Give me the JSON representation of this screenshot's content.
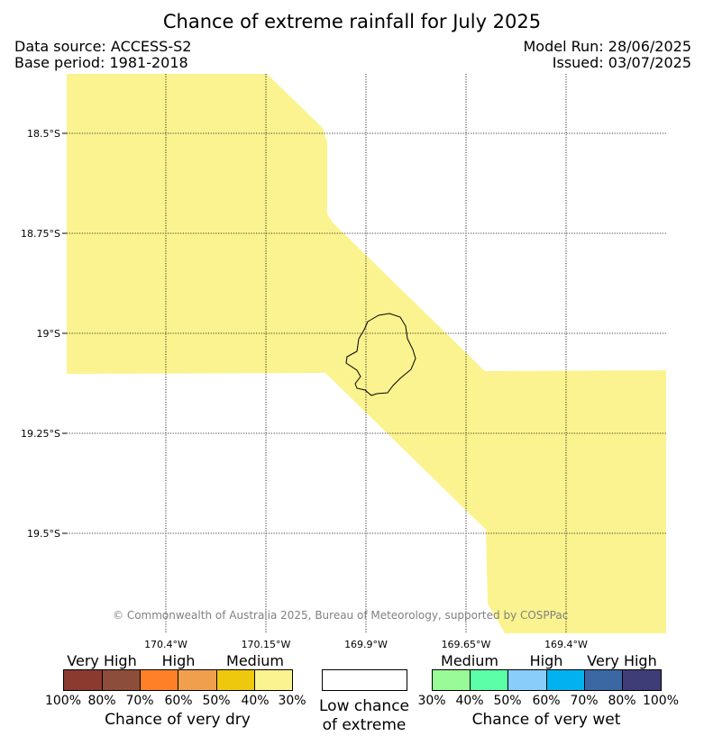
{
  "title": "Chance of extreme rainfall for July 2025",
  "data_source": "Data source: ACCESS-S2",
  "base_period": "Base period: 1981-2018",
  "model_run": "Model Run: 28/06/2025",
  "issued": "Issued: 03/07/2025",
  "map": {
    "latitude_labels": [
      "18.5°S",
      "18.75°S",
      "19°S",
      "19.25°S",
      "19.5°S"
    ],
    "longitude_labels": [
      "170.4°W",
      "170.15°W",
      "169.9°W",
      "169.65°W",
      "169.4°W"
    ],
    "shaded_category": "Medium chance of very dry (30%-40%)",
    "colors": {
      "shaded": "#fbf38f",
      "island_outline": "#000000",
      "gridline": "#000000"
    },
    "copyright": "© Commonwealth of Australia 2025, Bureau of Meteorology, supported by COSPPac"
  },
  "legend": {
    "dry": {
      "title": "Chance of very dry",
      "categories": [
        "Very High",
        "High",
        "Medium"
      ],
      "percent_ticks": [
        "100%",
        "80%",
        "70%",
        "60%",
        "50%",
        "40%",
        "30%"
      ],
      "colors": [
        "#8b3a30",
        "#8c4d3a",
        "#ff8027",
        "#f0a04d",
        "#eec80c",
        "#fbf38f"
      ]
    },
    "neutral": {
      "title_line1": "Low chance",
      "title_line2": "of extreme",
      "color": "#ffffff"
    },
    "wet": {
      "title": "Chance of very wet",
      "categories": [
        "Medium",
        "High",
        "Very High"
      ],
      "percent_ticks": [
        "30%",
        "40%",
        "50%",
        "60%",
        "70%",
        "80%",
        "100%"
      ],
      "colors": [
        "#98fb98",
        "#5cfea7",
        "#89cdfb",
        "#00b3f0",
        "#3b67a3",
        "#3e3d78"
      ]
    }
  }
}
